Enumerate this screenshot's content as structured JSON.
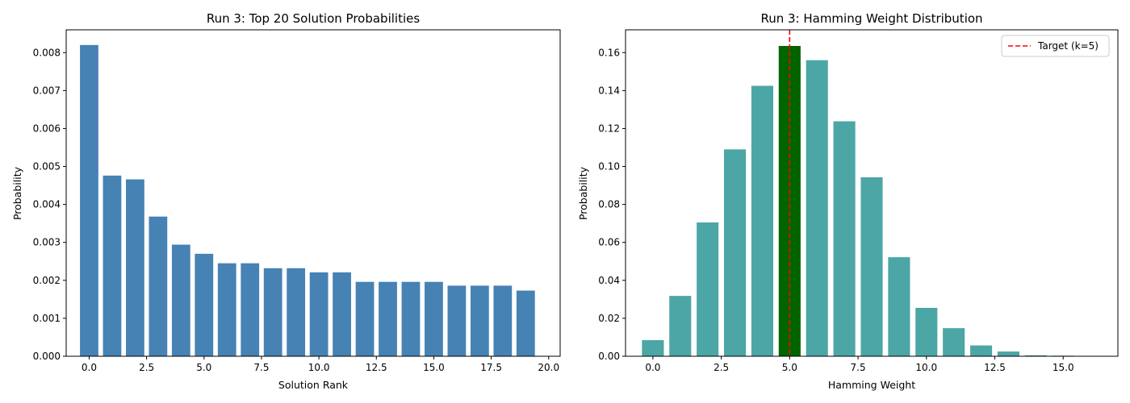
{
  "chart_data": [
    {
      "type": "bar",
      "title": "Run 3: Top 20 Solution Probabilities",
      "xlabel": "Solution Rank",
      "ylabel": "Probability",
      "x": [
        0,
        1,
        2,
        3,
        4,
        5,
        6,
        7,
        8,
        9,
        10,
        11,
        12,
        13,
        14,
        15,
        16,
        17,
        18,
        19
      ],
      "values": [
        0.0082,
        0.00476,
        0.00466,
        0.00368,
        0.00294,
        0.0027,
        0.00245,
        0.00245,
        0.00232,
        0.00232,
        0.00221,
        0.00221,
        0.00196,
        0.00196,
        0.00196,
        0.00196,
        0.00186,
        0.00186,
        0.00186,
        0.00173
      ],
      "xlim": [
        -1.0,
        20.5
      ],
      "ylim": [
        0,
        0.0086
      ],
      "xticks": [
        "0.0",
        "2.5",
        "5.0",
        "7.5",
        "10.0",
        "12.5",
        "15.0",
        "17.5",
        "20.0"
      ],
      "yticks": [
        "0.000",
        "0.001",
        "0.002",
        "0.003",
        "0.004",
        "0.005",
        "0.006",
        "0.007",
        "0.008"
      ],
      "color": "#4682b4",
      "grid": false
    },
    {
      "type": "bar",
      "title": "Run 3: Hamming Weight Distribution",
      "xlabel": "Hamming Weight",
      "ylabel": "Probability",
      "x": [
        0,
        1,
        2,
        3,
        4,
        5,
        6,
        7,
        8,
        9,
        10,
        11,
        12,
        13,
        14,
        15,
        16
      ],
      "values": [
        0.0085,
        0.0318,
        0.0705,
        0.109,
        0.1425,
        0.1635,
        0.156,
        0.1238,
        0.0943,
        0.0522,
        0.0255,
        0.0148,
        0.0057,
        0.0025,
        0.0005,
        0.0003,
        0.0002
      ],
      "highlight_index": 5,
      "xlim": [
        -1.0,
        17.0
      ],
      "ylim": [
        0,
        0.172
      ],
      "xticks": [
        "0.0",
        "2.5",
        "5.0",
        "7.5",
        "10.0",
        "12.5",
        "15.0"
      ],
      "yticks": [
        "0.00",
        "0.02",
        "0.04",
        "0.06",
        "0.08",
        "0.10",
        "0.12",
        "0.14",
        "0.16"
      ],
      "color": "#4ca6a6",
      "highlight_color": "#006400",
      "target_line": {
        "x": 5,
        "color": "#ff0000",
        "style": "dashed",
        "label": "Target (k=5)"
      },
      "legend": {
        "position": "top-right",
        "entries": [
          "Target (k=5)"
        ]
      },
      "grid": false
    }
  ]
}
